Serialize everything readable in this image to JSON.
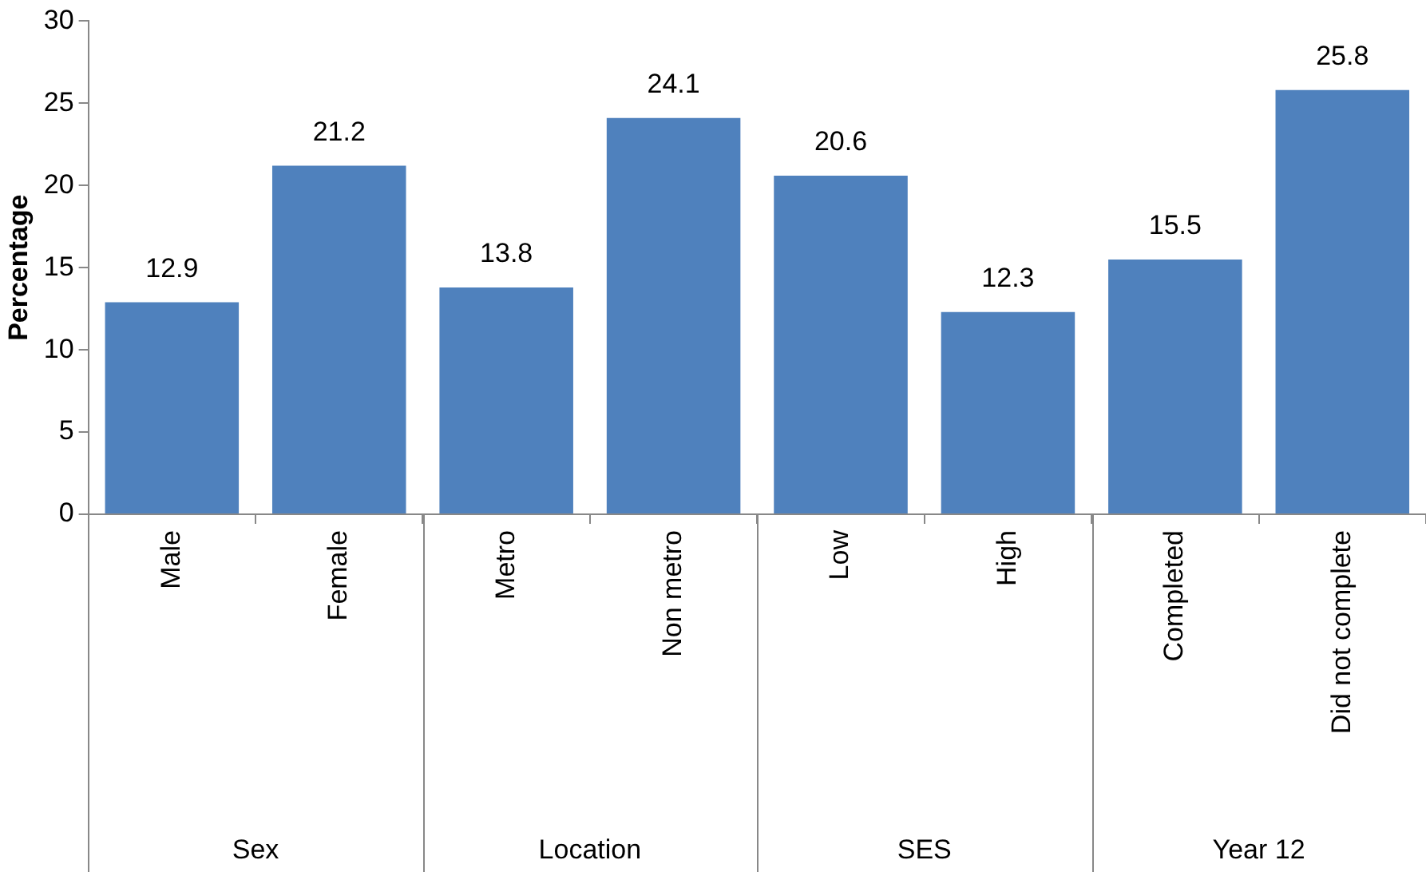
{
  "chart_data": {
    "type": "bar",
    "ylabel": "Percentage",
    "categories": [
      "Male",
      "Female",
      "Metro",
      "Non metro",
      "Low",
      "High",
      "Completed",
      "Did not complete"
    ],
    "values": [
      12.9,
      21.2,
      13.8,
      24.1,
      20.6,
      12.3,
      15.5,
      25.8
    ],
    "color": "#4f81bd",
    "ylim": [
      0,
      30
    ],
    "yticks": [
      0,
      5,
      10,
      15,
      20,
      25,
      30
    ],
    "grid": false,
    "data_labels": true,
    "annotations": [
      "Sex",
      "Location",
      "SES",
      "Year 12"
    ]
  }
}
